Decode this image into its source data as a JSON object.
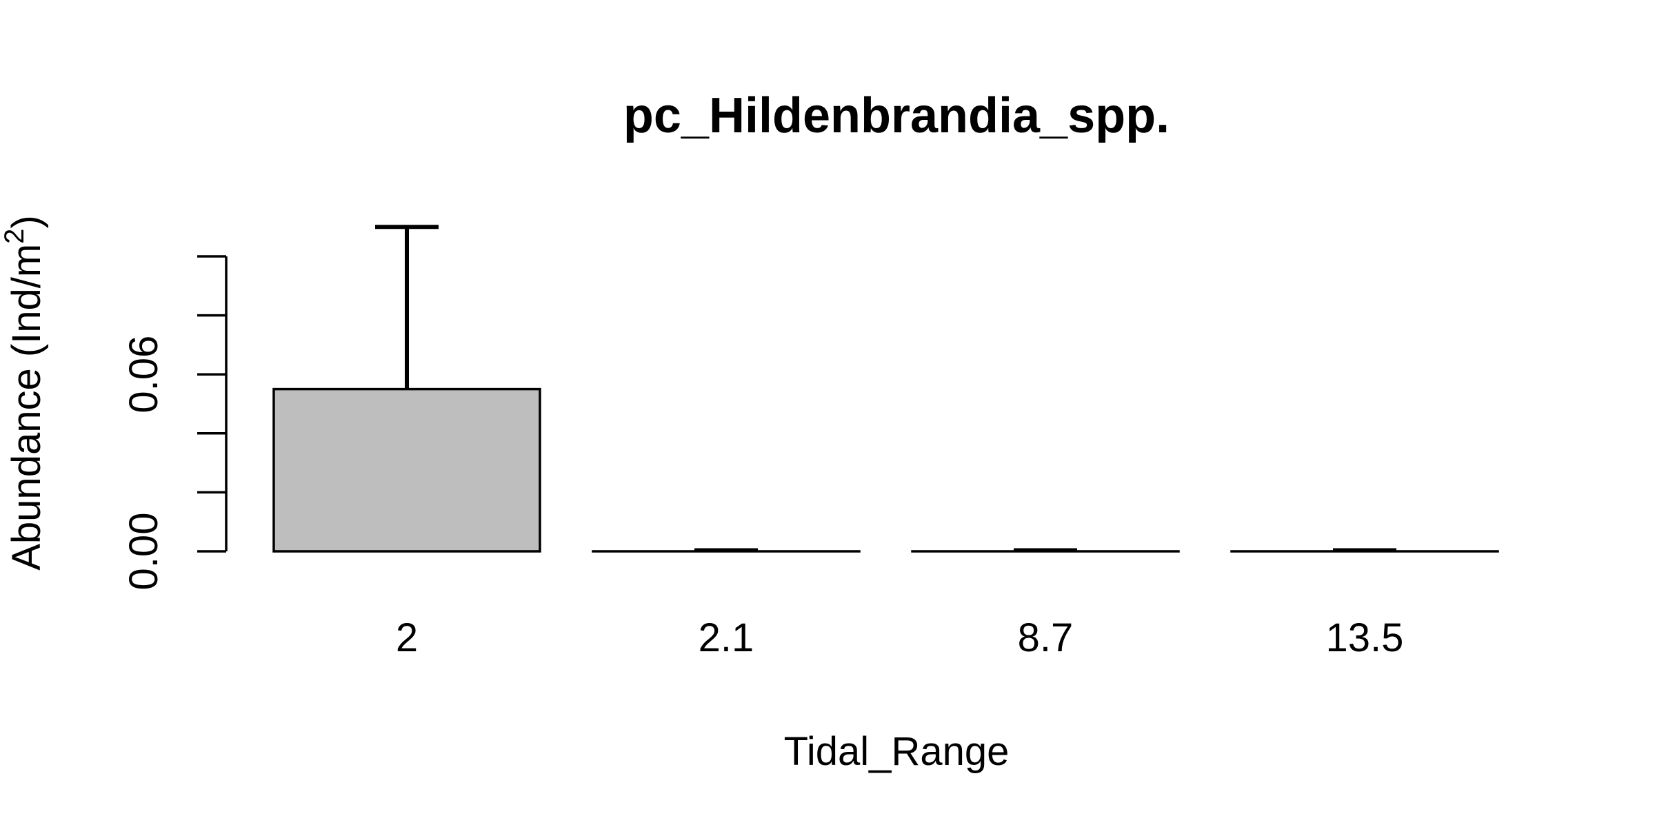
{
  "chart_data": {
    "type": "bar",
    "title": "pc_Hildenbrandia_spp.",
    "xlabel": "Tidal_Range",
    "ylabel": {
      "prefix": "Abundance (Ind/m",
      "superscript": "2",
      "suffix": ")"
    },
    "categories": [
      "2",
      "2.1",
      "8.7",
      "13.5"
    ],
    "values": [
      0.055,
      0,
      0,
      0
    ],
    "error_upper": [
      0.11,
      0,
      0,
      0
    ],
    "ylim": [
      0,
      0.12
    ],
    "yticks": [
      0,
      0.02,
      0.04,
      0.06,
      0.08,
      0.1
    ],
    "ytick_labels": [
      "0.00",
      "",
      "",
      "0.06",
      "",
      ""
    ],
    "grid": false,
    "legend": "none",
    "colors": {
      "bar_fill": "#bebebe",
      "bar_stroke": "#000000",
      "error_bar": "#000000",
      "axis": "#000000"
    }
  }
}
